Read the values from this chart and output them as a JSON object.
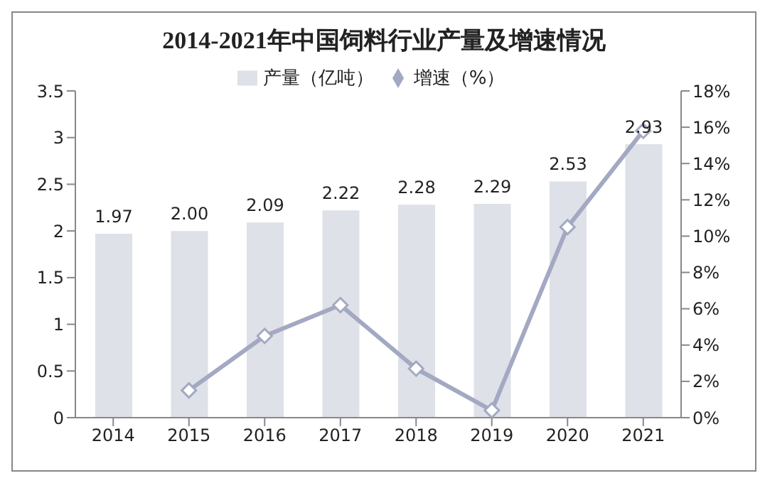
{
  "chart_data": {
    "type": "bar",
    "title": "2014-2021年中国饲料行业产量及增速情况",
    "categories": [
      "2014",
      "2015",
      "2016",
      "2017",
      "2018",
      "2019",
      "2020",
      "2021"
    ],
    "series": [
      {
        "name": "产量（亿吨）",
        "color": "#dfe1e8",
        "values": [
          1.97,
          2.0,
          2.09,
          2.22,
          2.28,
          2.29,
          2.53,
          2.93
        ],
        "value_labels": [
          "1.97",
          "2.00",
          "2.09",
          "2.22",
          "2.28",
          "2.29",
          "2.53",
          "2.93"
        ]
      },
      {
        "name": "增速（%）",
        "type": "line",
        "axis": "y2",
        "color": "#a3a9c2",
        "marker": "diamond",
        "values": [
          null,
          1.5,
          4.5,
          6.2,
          2.7,
          0.4,
          10.5,
          15.8
        ]
      }
    ],
    "ylim": [
      0,
      3.5
    ],
    "yticks": [
      0,
      0.5,
      1,
      1.5,
      2,
      2.5,
      3,
      3.5
    ],
    "y2lim": [
      0,
      18
    ],
    "y2ticks": [
      {
        "value": 0,
        "label": "0%"
      },
      {
        "value": 2,
        "label": "2%"
      },
      {
        "value": 4,
        "label": "4%"
      },
      {
        "value": 6,
        "label": "6%"
      },
      {
        "value": 8,
        "label": "8%"
      },
      {
        "value": 10,
        "label": "10%"
      },
      {
        "value": 12,
        "label": "12%"
      },
      {
        "value": 14,
        "label": "14%"
      },
      {
        "value": 16,
        "label": "16%"
      },
      {
        "value": 18,
        "label": "18%"
      }
    ],
    "legend": "top"
  }
}
